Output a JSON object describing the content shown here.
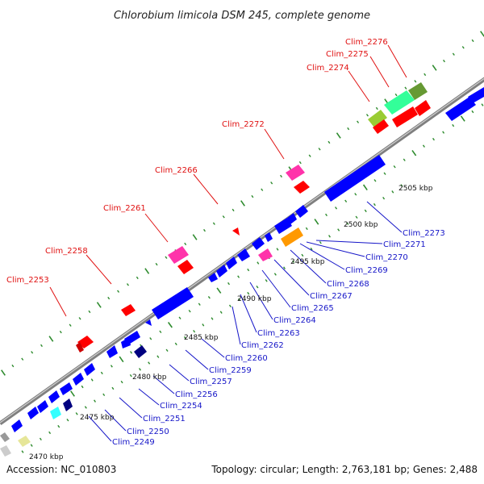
{
  "title": "Chlorobium limicola DSM 245, complete genome",
  "footer": {
    "accession": "Accession: NC_010803",
    "summary": "Topology: circular; Length: 2,763,181 bp; Genes: 2,488"
  },
  "scale_labels": [
    "2470 kbp",
    "2475 kbp",
    "2480 kbp",
    "2485 kbp",
    "2490 kbp",
    "2495 kbp",
    "2500 kbp",
    "2505 kbp"
  ],
  "colors": {
    "backbone": "#8a8a8a",
    "dot_track": "#2e8b2e",
    "top_label": "#e01010",
    "bottom_label": "#1515c8"
  },
  "top_gene_labels": [
    "Clim_2253",
    "Clim_2258",
    "Clim_2261",
    "Clim_2266",
    "Clim_2272",
    "Clim_2274",
    "Clim_2275",
    "Clim_2276"
  ],
  "bottom_gene_labels": [
    "Clim_2249",
    "Clim_2250",
    "Clim_2251",
    "Clim_2254",
    "Clim_2256",
    "Clim_2257",
    "Clim_2259",
    "Clim_2260",
    "Clim_2262",
    "Clim_2263",
    "Clim_2264",
    "Clim_2265",
    "Clim_2267",
    "Clim_2268",
    "Clim_2269",
    "Clim_2270",
    "Clim_2271",
    "Clim_2273"
  ]
}
